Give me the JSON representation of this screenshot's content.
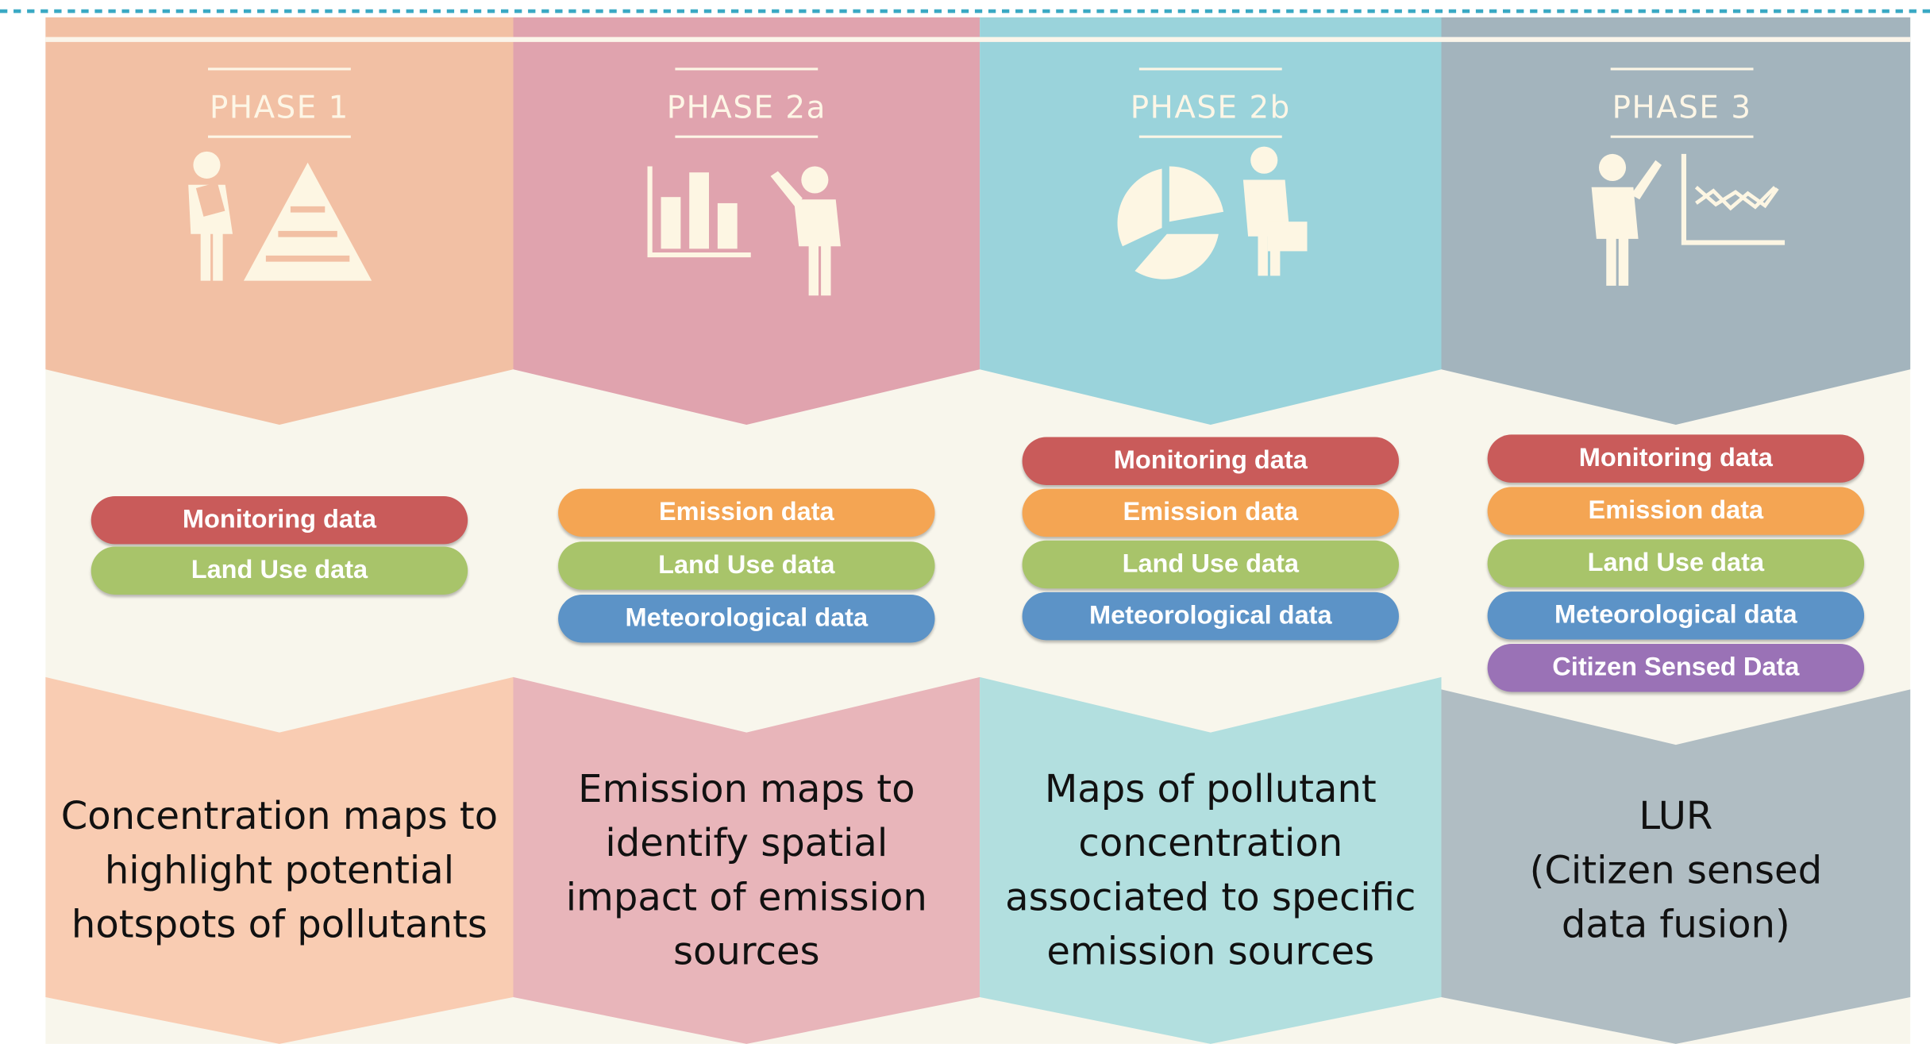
{
  "phases": [
    {
      "title": "PHASE 1",
      "inputs": [
        {
          "label": "Monitoring data",
          "color": "#c95b5a"
        },
        {
          "label": "Land Use data",
          "color": "#a8c46a"
        }
      ],
      "description": [
        "Concentration maps to",
        "highlight potential",
        "hotspots of pollutants"
      ]
    },
    {
      "title": "PHASE 2a",
      "inputs": [
        {
          "label": "Emission data",
          "color": "#f4a553"
        },
        {
          "label": "Land Use data",
          "color": "#a8c46a"
        },
        {
          "label": "Meteorological data",
          "color": "#5c93c7"
        }
      ],
      "description": [
        "Emission maps to",
        "identify spatial",
        "impact of emission",
        "sources"
      ]
    },
    {
      "title": "PHASE 2b",
      "inputs": [
        {
          "label": "Monitoring data",
          "color": "#c95b5a"
        },
        {
          "label": "Emission data",
          "color": "#f4a553"
        },
        {
          "label": "Land Use data",
          "color": "#a8c46a"
        },
        {
          "label": "Meteorological data",
          "color": "#5c93c7"
        }
      ],
      "description": [
        "Maps of pollutant",
        "concentration",
        "associated  to specific",
        "emission sources"
      ]
    },
    {
      "title": "PHASE 3",
      "inputs": [
        {
          "label": "Monitoring data",
          "color": "#c95b5a"
        },
        {
          "label": "Emission data",
          "color": "#f4a553"
        },
        {
          "label": "Land Use data",
          "color": "#a8c46a"
        },
        {
          "label": "Meteorological data",
          "color": "#5c93c7"
        },
        {
          "label": "Citizen Sensed Data",
          "color": "#9a72b6"
        }
      ],
      "description": [
        "LUR",
        "(Citizen sensed",
        "data fusion)"
      ]
    }
  ]
}
